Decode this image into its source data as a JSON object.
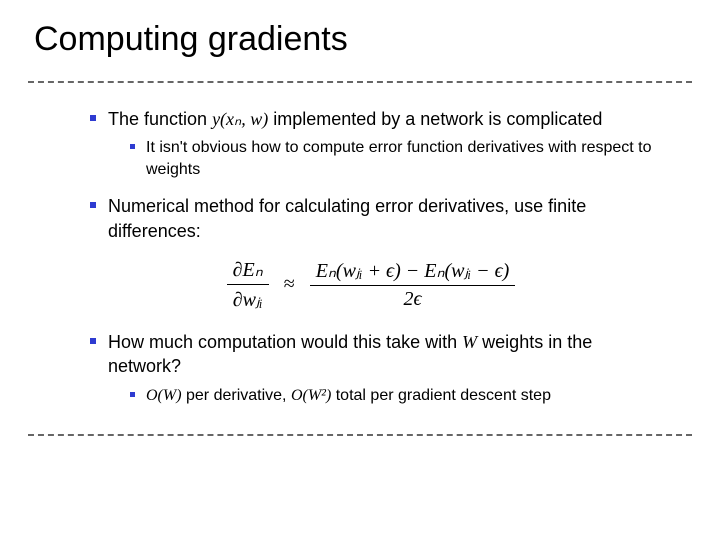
{
  "title": "Computing gradients",
  "bullets": {
    "b1_pre": "The function ",
    "b1_math": "y(xₙ, w)",
    "b1_post": " implemented by a network is complicated",
    "b1_sub": "It isn't obvious how to compute error function derivatives with respect to weights",
    "b2": "Numerical method for calculating error derivatives, use finite differences:",
    "b3_pre": "How much computation would this take with ",
    "b3_math": "W",
    "b3_post": " weights in the network?",
    "b3_sub_pre": "",
    "b3_sub_m1": "O(W)",
    "b3_sub_mid": " per derivative, ",
    "b3_sub_m2": "O(W²)",
    "b3_sub_end": " total per gradient descent step"
  },
  "equation": {
    "lhs_num": "∂Eₙ",
    "lhs_den": "∂wⱼᵢ",
    "approx": "≈",
    "rhs_num": "Eₙ(wⱼᵢ + ϵ) − Eₙ(wⱼᵢ − ϵ)",
    "rhs_den": "2ϵ"
  },
  "colors": {
    "bullet": "#2e3bd1",
    "text": "#000000",
    "dash": "#666666",
    "bg": "#ffffff"
  },
  "font_sizes": {
    "title": 34,
    "bullet": 18,
    "sub_bullet": 16,
    "equation": 20
  }
}
